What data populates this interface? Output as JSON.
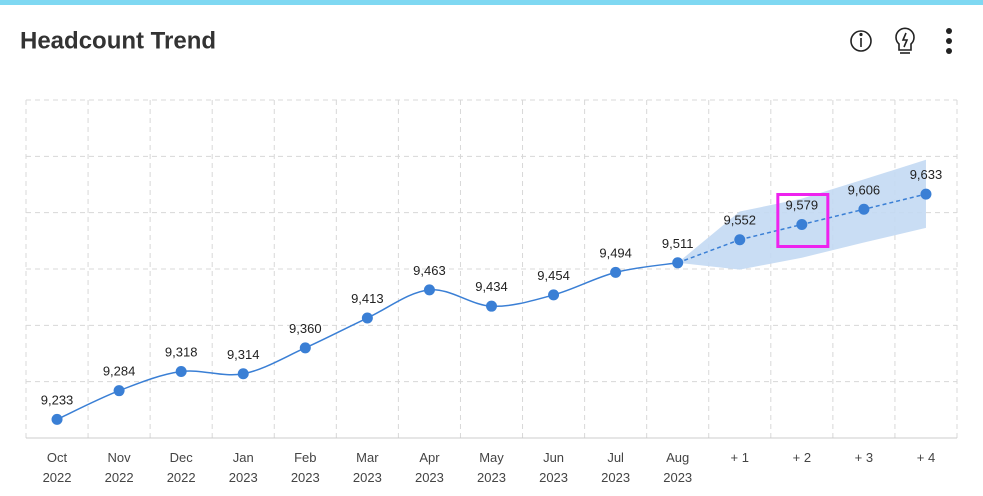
{
  "chart_data": {
    "type": "line",
    "title": "Headcount Trend",
    "categories": [
      "Oct 2022",
      "Nov 2022",
      "Dec 2022",
      "Jan 2023",
      "Feb 2023",
      "Mar 2023",
      "Apr 2023",
      "May 2023",
      "Jun 2023",
      "Jul 2023",
      "Aug 2023",
      "+ 1",
      "+ 2",
      "+ 3",
      "+ 4"
    ],
    "series": [
      {
        "color": "#3a7fd5",
        "line": "solid",
        "values": [
          9233,
          9284,
          9318,
          9314,
          9360,
          9413,
          9463,
          9434,
          9454,
          9494,
          9511,
          null,
          null,
          null,
          null
        ],
        "value_labels": [
          "9,233",
          "9,284",
          "9,318",
          "9,314",
          "9,360",
          "9,413",
          "9,463",
          "9,434",
          "9,454",
          "9,494",
          "9,511",
          null,
          null,
          null,
          null
        ]
      },
      {
        "color": "#3a7fd5",
        "line": "dashed",
        "values": [
          null,
          null,
          null,
          null,
          null,
          null,
          null,
          null,
          null,
          null,
          null,
          9552,
          9579,
          9606,
          9633
        ],
        "value_labels": [
          null,
          null,
          null,
          null,
          null,
          null,
          null,
          null,
          null,
          null,
          null,
          "9,552",
          "9,579",
          "9,606",
          "9,633"
        ]
      }
    ],
    "band": {
      "color": "#c3d9f3",
      "upper": [
        null,
        null,
        null,
        null,
        null,
        null,
        null,
        null,
        null,
        null,
        9511,
        9602,
        9625,
        9659,
        9694
      ],
      "lower": [
        null,
        null,
        null,
        null,
        null,
        null,
        null,
        null,
        null,
        null,
        9511,
        9499,
        9520,
        9547,
        9573
      ]
    },
    "highlight": "+ 2",
    "ylim": [
      9200,
      9800
    ],
    "yticks": [
      9200,
      9300,
      9400,
      9500,
      9600,
      9700,
      9800
    ],
    "grid": true
  }
}
